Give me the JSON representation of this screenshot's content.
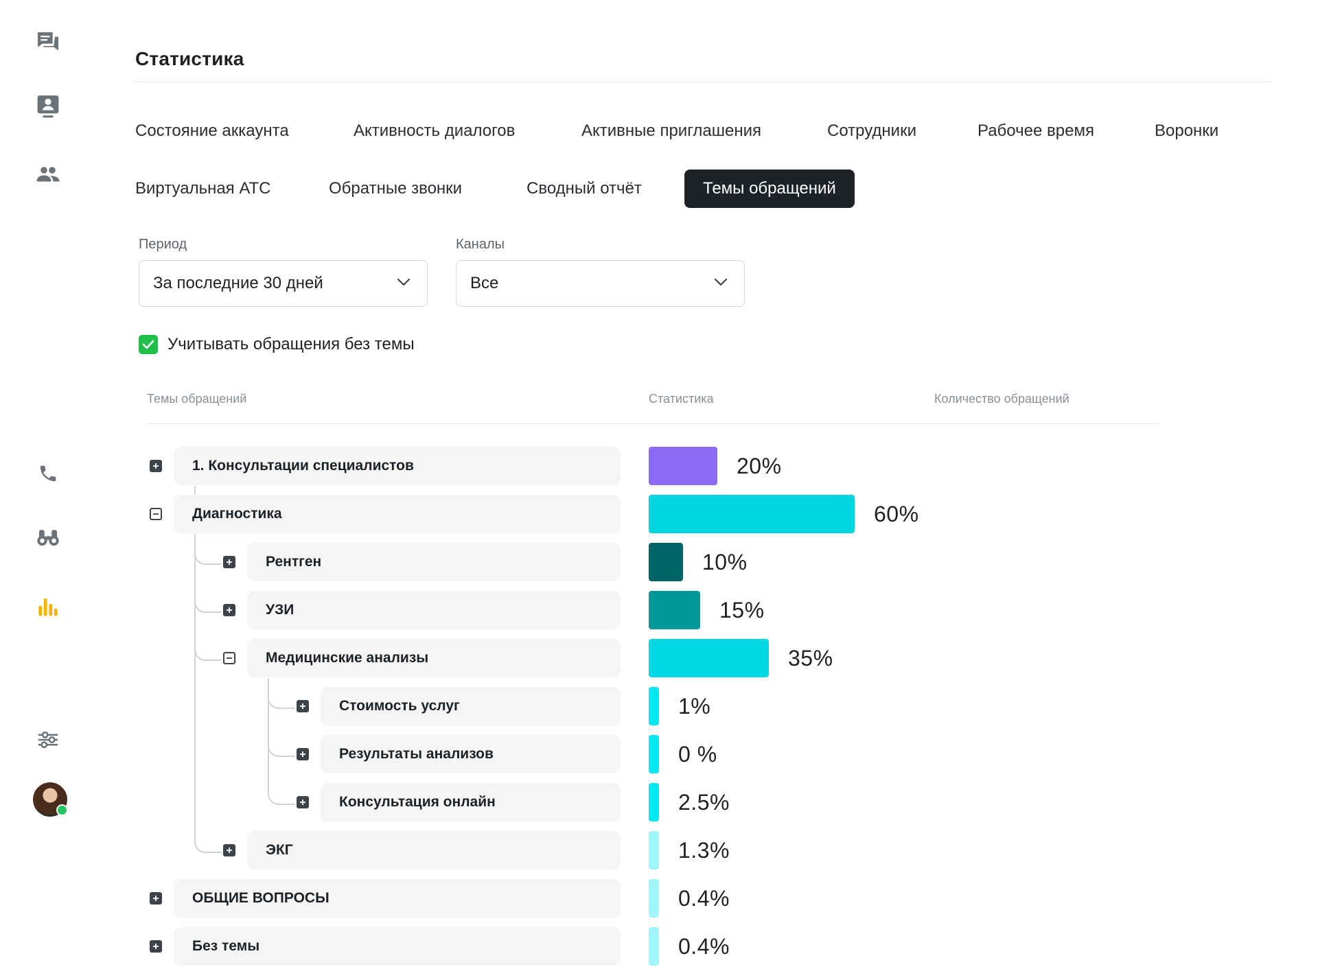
{
  "sidebar": {
    "top_icons": [
      "chat-icon",
      "contact-card-icon",
      "users-icon"
    ],
    "mid_icons": [
      "phone-icon",
      "binoculars-icon",
      "statistics-icon"
    ],
    "bottom_icons": [
      "settings-sliders-icon"
    ],
    "active_icon": "statistics-icon",
    "accent_color": "#f5b300"
  },
  "page": {
    "title": "Статистика"
  },
  "tabs": [
    {
      "label": "Состояние аккаунта",
      "active": false
    },
    {
      "label": "Активность диалогов",
      "active": false
    },
    {
      "label": "Активные приглашения",
      "active": false
    },
    {
      "label": "Сотрудники",
      "active": false
    },
    {
      "label": "Рабочее время",
      "active": false
    },
    {
      "label": "Воронки",
      "active": false
    },
    {
      "label": "Виртуальная АТС",
      "active": false
    },
    {
      "label": "Обратные звонки",
      "active": false
    },
    {
      "label": "Сводный отчёт",
      "active": false
    },
    {
      "label": "Темы обращений",
      "active": true
    }
  ],
  "filters": {
    "period": {
      "label": "Период",
      "value": "За последние 30 дней"
    },
    "channels": {
      "label": "Каналы",
      "value": "Все"
    },
    "include_no_topic": {
      "label": "Учитывать обращения без темы",
      "checked": true
    }
  },
  "table": {
    "columns": [
      "Темы обращений",
      "Статистика",
      "Количество обращений"
    ],
    "rows": [
      {
        "label": "1. Консультации специалистов",
        "level": 0,
        "expanded": false,
        "percent_text": "20%",
        "percent": 20,
        "color": "#8a6cf7"
      },
      {
        "label": "Диагностика",
        "level": 0,
        "expanded": true,
        "percent_text": "60%",
        "percent": 60,
        "color": "#00d5df"
      },
      {
        "label": "Рентген",
        "level": 1,
        "expanded": false,
        "percent_text": "10%",
        "percent": 10,
        "color": "#006468"
      },
      {
        "label": "УЗИ",
        "level": 1,
        "expanded": false,
        "percent_text": "15%",
        "percent": 15,
        "color": "#00979b"
      },
      {
        "label": "Медицинские анализы",
        "level": 1,
        "expanded": true,
        "percent_text": "35%",
        "percent": 35,
        "color": "#00d9e3"
      },
      {
        "label": "Стоимость услуг",
        "level": 2,
        "expanded": false,
        "percent_text": "1%",
        "percent": 1,
        "color": "#00e9f3"
      },
      {
        "label": "Результаты анализов",
        "level": 2,
        "expanded": false,
        "percent_text": "0 %",
        "percent": 0,
        "color": "#00e9f3"
      },
      {
        "label": "Консультация онлайн",
        "level": 2,
        "expanded": false,
        "percent_text": "2.5%",
        "percent": 2.5,
        "color": "#00e9f3"
      },
      {
        "label": "ЭКГ",
        "level": 1,
        "expanded": false,
        "percent_text": "1.3%",
        "percent": 1.3,
        "color": "#9ff7fb"
      },
      {
        "label": "ОБЩИЕ ВОПРОСЫ",
        "level": 0,
        "expanded": false,
        "percent_text": "0.4%",
        "percent": 0.4,
        "color": "#9ff7fb"
      },
      {
        "label": "Без темы",
        "level": 0,
        "expanded": false,
        "percent_text": "0.4%",
        "percent": 0.4,
        "color": "#9ff7fb"
      }
    ]
  }
}
